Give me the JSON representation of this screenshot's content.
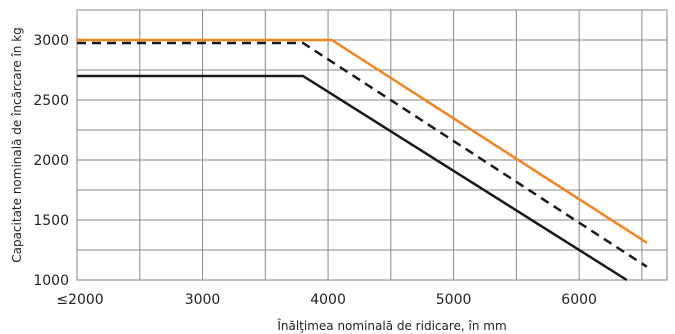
{
  "chart_data": {
    "type": "line",
    "xlabel": "Înălţimea nominală de ridicare, în mm",
    "ylabel": "Capacitate nominală de încărcare în kg",
    "xlim": [
      2000,
      6700
    ],
    "ylim": [
      1000,
      3250
    ],
    "x_ticks": [
      {
        "value": 2000,
        "label": "≤2000"
      },
      {
        "value": 3000,
        "label": "3000"
      },
      {
        "value": 4000,
        "label": "4000"
      },
      {
        "value": 5000,
        "label": "5000"
      },
      {
        "value": 6000,
        "label": "6000"
      }
    ],
    "y_ticks": [
      {
        "value": 1000,
        "label": "1000"
      },
      {
        "value": 1500,
        "label": "1500"
      },
      {
        "value": 2000,
        "label": "2000"
      },
      {
        "value": 2500,
        "label": "2500"
      },
      {
        "value": 3000,
        "label": "3000"
      }
    ],
    "x_grid": [
      2000,
      2500,
      3000,
      3500,
      4000,
      4500,
      5000,
      5500,
      6000,
      6500
    ],
    "y_grid": [
      1000,
      1250,
      1500,
      1750,
      2000,
      2250,
      2500,
      2750,
      3000,
      3250
    ],
    "grid": true,
    "series": [
      {
        "color": "#f0861f",
        "style": "solid",
        "x": [
          2000,
          4030,
          6540
        ],
        "y": [
          3000,
          3000,
          1310
        ]
      },
      {
        "color": "#1a1a1a",
        "style": "dashed",
        "x": [
          2000,
          3800,
          6540
        ],
        "y": [
          2975,
          2975,
          1110
        ]
      },
      {
        "color": "#1a1a1a",
        "style": "solid",
        "x": [
          2000,
          3800,
          6380
        ],
        "y": [
          2700,
          2700,
          1000
        ]
      }
    ]
  }
}
